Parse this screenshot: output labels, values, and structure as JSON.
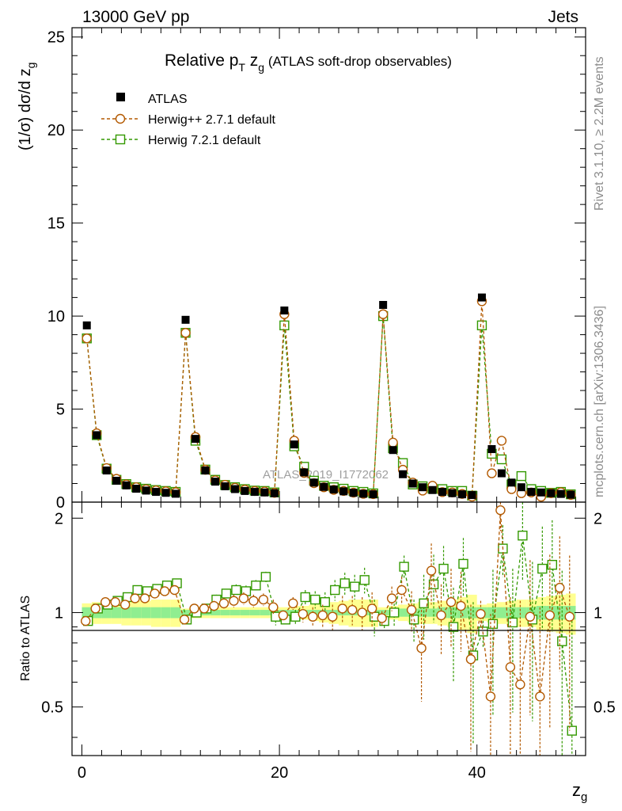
{
  "header": {
    "left": "13000 GeV pp",
    "right": "Jets"
  },
  "side_labels": {
    "rivet": "Rivet 3.1.10, ≥ 2.2M events",
    "mcplots": "mcplots.cern.ch [arXiv:1306.3436]"
  },
  "chart_data": {
    "type": "scatter",
    "title_main": "Relative p",
    "title_sub_T": "T",
    "title_z": " z",
    "title_sub_g": "g",
    "title_suffix": " (ATLAS soft-drop observables)",
    "watermark": "ATLAS_2019_I1772062",
    "ylabel_top": "(1/σ) dσ/d z",
    "ylabel_top_sub": "g",
    "ylabel_bottom": "Ratio to ATLAS",
    "xlabel": "z",
    "xlabel_sub": "g",
    "xlim": [
      -1,
      51
    ],
    "ylim_top": [
      0,
      25.5
    ],
    "ylim_ratio": [
      0.35,
      2.25
    ],
    "xticks": [
      "0",
      "20",
      "40"
    ],
    "xtick_values": [
      0,
      20,
      40
    ],
    "yticks_top": [
      "0",
      "5",
      "10",
      "15",
      "20",
      "25"
    ],
    "ytick_values_top": [
      0,
      5,
      10,
      15,
      20,
      25
    ],
    "yticks_ratio": [
      "0.5",
      "1",
      "2"
    ],
    "ytick_values_ratio": [
      0.5,
      1,
      2
    ],
    "x": [
      0.5,
      1.5,
      2.5,
      3.5,
      4.5,
      5.5,
      6.5,
      7.5,
      8.5,
      9.5,
      10.5,
      11.5,
      12.5,
      13.5,
      14.5,
      15.5,
      16.5,
      17.5,
      18.5,
      19.5,
      20.5,
      21.5,
      22.5,
      23.5,
      24.5,
      25.5,
      26.5,
      27.5,
      28.5,
      29.5,
      30.5,
      31.5,
      32.5,
      33.5,
      34.5,
      35.5,
      36.5,
      37.5,
      38.5,
      39.5,
      40.5,
      41.5,
      42.5,
      43.5,
      44.5,
      45.5,
      46.5,
      47.5,
      48.5,
      49.5
    ],
    "series": [
      {
        "name": "ATLAS",
        "color": "#000000",
        "marker": "filled-square",
        "values": [
          9.5,
          3.6,
          1.7,
          1.15,
          0.9,
          0.72,
          0.62,
          0.55,
          0.5,
          0.45,
          9.8,
          3.4,
          1.7,
          1.1,
          0.85,
          0.7,
          0.6,
          0.55,
          0.52,
          0.48,
          10.3,
          3.1,
          1.6,
          1.05,
          0.82,
          0.68,
          0.58,
          0.5,
          0.45,
          0.42,
          10.6,
          2.8,
          1.5,
          1.0,
          0.8,
          0.65,
          0.55,
          0.48,
          0.42,
          0.38,
          11.0,
          2.85,
          1.55,
          1.05,
          0.8,
          0.55,
          0.52,
          0.48,
          0.44,
          0.4
        ],
        "ratio": [],
        "ratio_err": []
      },
      {
        "name": "Herwig++ 2.7.1 default",
        "color": "#b35900",
        "marker": "open-circle",
        "values": [
          8.8,
          3.7,
          1.83,
          1.25,
          0.95,
          0.8,
          0.69,
          0.63,
          0.58,
          0.53,
          9.1,
          3.5,
          1.74,
          1.17,
          0.93,
          0.77,
          0.67,
          0.6,
          0.57,
          0.5,
          10.1,
          3.3,
          1.57,
          1.02,
          0.8,
          0.66,
          0.6,
          0.51,
          0.45,
          0.43,
          10.1,
          3.2,
          1.74,
          1.05,
          0.62,
          0.88,
          0.54,
          0.52,
          0.44,
          0.3,
          10.8,
          1.55,
          3.3,
          0.7,
          0.48,
          0.52,
          0.29,
          0.48,
          0.53,
          0.39
        ],
        "ratio": [
          0.94,
          1.03,
          1.08,
          1.08,
          1.06,
          1.11,
          1.11,
          1.15,
          1.17,
          1.18,
          0.95,
          1.03,
          1.03,
          1.05,
          1.07,
          1.09,
          1.11,
          1.09,
          1.1,
          1.04,
          0.98,
          1.07,
          0.99,
          0.97,
          0.98,
          0.97,
          1.03,
          1.02,
          1.0,
          1.03,
          0.96,
          1.11,
          1.18,
          1.02,
          0.77,
          1.36,
          0.98,
          1.08,
          1.05,
          0.71,
          0.99,
          0.54,
          2.12,
          0.67,
          0.59,
          0.97,
          0.54,
          0.98,
          1.2,
          0.97
        ],
        "ratio_err": [
          0.02,
          0.02,
          0.02,
          0.02,
          0.02,
          0.03,
          0.03,
          0.03,
          0.03,
          0.03,
          0.02,
          0.03,
          0.03,
          0.04,
          0.04,
          0.05,
          0.05,
          0.05,
          0.05,
          0.06,
          0.03,
          0.05,
          0.06,
          0.07,
          0.08,
          0.09,
          0.1,
          0.11,
          0.12,
          0.13,
          0.05,
          0.1,
          0.12,
          0.15,
          0.25,
          0.3,
          0.25,
          0.3,
          0.3,
          0.35,
          0.1,
          0.45,
          0.3,
          0.45,
          0.5,
          0.5,
          0.5,
          0.55,
          0.55,
          0.55
        ]
      },
      {
        "name": "Herwig 7.2.1 default",
        "color": "#339900",
        "marker": "open-square",
        "values": [
          8.8,
          3.6,
          1.8,
          1.2,
          0.97,
          0.8,
          0.72,
          0.65,
          0.6,
          0.55,
          9.1,
          3.3,
          1.75,
          1.2,
          0.92,
          0.8,
          0.7,
          0.62,
          0.6,
          0.52,
          9.5,
          3.0,
          1.9,
          1.15,
          0.88,
          0.8,
          0.72,
          0.6,
          0.55,
          0.47,
          10.0,
          2.9,
          2.1,
          0.95,
          0.85,
          0.72,
          0.7,
          0.6,
          0.6,
          0.35,
          9.5,
          2.6,
          2.3,
          0.95,
          1.4,
          0.7,
          0.6,
          0.5,
          0.55,
          0.42
        ],
        "ratio": [
          0.94,
          1.03,
          1.06,
          1.09,
          1.12,
          1.18,
          1.17,
          1.19,
          1.22,
          1.24,
          0.95,
          1.0,
          1.03,
          1.1,
          1.15,
          1.18,
          1.17,
          1.22,
          1.3,
          0.97,
          0.95,
          0.97,
          1.12,
          1.1,
          1.08,
          1.18,
          1.24,
          1.21,
          1.27,
          0.97,
          0.94,
          1.0,
          1.4,
          0.95,
          1.07,
          1.23,
          1.38,
          0.9,
          1.43,
          0.73,
          0.87,
          0.92,
          1.6,
          0.93,
          1.76,
          0.95,
          1.38,
          1.42,
          0.81,
          0.42
        ],
        "ratio_err": [
          0.02,
          0.02,
          0.02,
          0.02,
          0.02,
          0.03,
          0.03,
          0.03,
          0.03,
          0.03,
          0.02,
          0.03,
          0.03,
          0.04,
          0.04,
          0.05,
          0.05,
          0.05,
          0.05,
          0.06,
          0.03,
          0.05,
          0.06,
          0.07,
          0.08,
          0.09,
          0.1,
          0.11,
          0.12,
          0.13,
          0.05,
          0.1,
          0.12,
          0.15,
          0.25,
          0.3,
          0.25,
          0.3,
          0.3,
          0.35,
          0.1,
          0.45,
          0.3,
          0.45,
          0.5,
          0.5,
          0.5,
          0.55,
          0.55,
          0.55
        ]
      }
    ],
    "ratio_band_inner": [
      0.04,
      0.04,
      0.04,
      0.04,
      0.04,
      0.04,
      0.04,
      0.04,
      0.04,
      0.04,
      0.02,
      0.02,
      0.02,
      0.02,
      0.02,
      0.02,
      0.02,
      0.02,
      0.02,
      0.02,
      0.02,
      0.02,
      0.02,
      0.02,
      0.02,
      0.02,
      0.02,
      0.02,
      0.02,
      0.02,
      0.02,
      0.02,
      0.03,
      0.03,
      0.03,
      0.03,
      0.04,
      0.04,
      0.04,
      0.04,
      0.04,
      0.04,
      0.04,
      0.04,
      0.04,
      0.04,
      0.05,
      0.05,
      0.05,
      0.05
    ],
    "ratio_band_outer": [
      0.07,
      0.08,
      0.08,
      0.08,
      0.09,
      0.09,
      0.09,
      0.1,
      0.1,
      0.1,
      0.03,
      0.04,
      0.04,
      0.04,
      0.04,
      0.04,
      0.04,
      0.04,
      0.04,
      0.04,
      0.04,
      0.05,
      0.05,
      0.06,
      0.07,
      0.08,
      0.09,
      0.1,
      0.1,
      0.1,
      0.04,
      0.05,
      0.06,
      0.07,
      0.08,
      0.08,
      0.09,
      0.1,
      0.12,
      0.14,
      0.06,
      0.07,
      0.08,
      0.09,
      0.1,
      0.1,
      0.12,
      0.13,
      0.14,
      0.15
    ]
  }
}
